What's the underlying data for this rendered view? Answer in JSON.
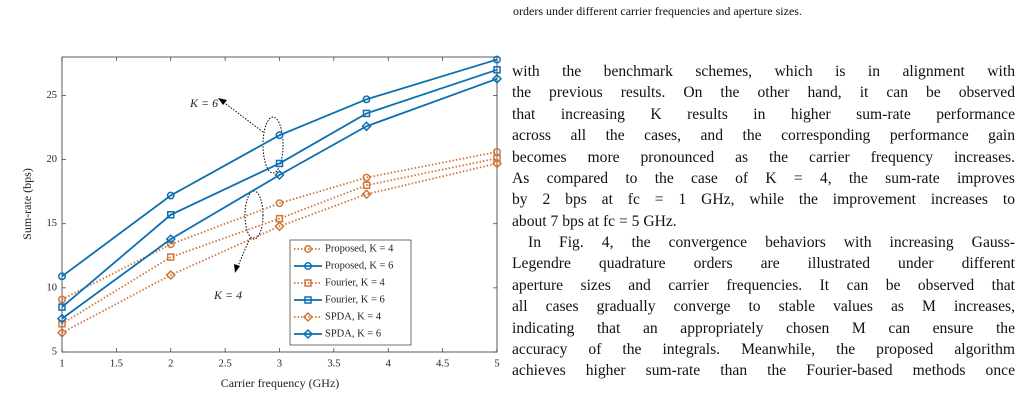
{
  "chart_data": {
    "type": "line",
    "xlabel": "Carrier frequency (GHz)",
    "ylabel": "Sum-rate (bps)",
    "x": [
      1,
      2,
      3,
      3.8,
      5
    ],
    "xlim": [
      1,
      5
    ],
    "xticks": [
      1,
      1.5,
      2,
      2.5,
      3,
      3.5,
      4,
      4.5,
      5
    ],
    "ylim": [
      5,
      28
    ],
    "yticks": [
      5,
      10,
      15,
      20,
      25
    ],
    "annotations": [
      "K = 6",
      "K = 4"
    ],
    "series": [
      {
        "name": "Proposed, K = 4",
        "color": "#d0763a",
        "marker": "circle",
        "linestyle": "dotted",
        "values": [
          9.1,
          13.4,
          16.6,
          18.6,
          20.6
        ]
      },
      {
        "name": "Proposed, K = 6",
        "color": "#0b6fb0",
        "marker": "circle",
        "linestyle": "solid",
        "values": [
          10.9,
          17.2,
          21.9,
          24.7,
          27.8
        ]
      },
      {
        "name": "Fourier, K = 4",
        "color": "#d0763a",
        "marker": "square",
        "linestyle": "dotted",
        "values": [
          7.2,
          12.4,
          15.4,
          18.0,
          20.1
        ]
      },
      {
        "name": "Fourier, K = 6",
        "color": "#0b6fb0",
        "marker": "square",
        "linestyle": "solid",
        "values": [
          8.5,
          15.7,
          19.7,
          23.6,
          27.0
        ]
      },
      {
        "name": "SPDA, K = 4",
        "color": "#d0763a",
        "marker": "diamond",
        "linestyle": "dotted",
        "values": [
          6.5,
          11.0,
          14.8,
          17.3,
          19.7
        ]
      },
      {
        "name": "SPDA, K = 6",
        "color": "#0b6fb0",
        "marker": "diamond",
        "linestyle": "solid",
        "values": [
          7.6,
          13.8,
          18.8,
          22.6,
          26.3
        ]
      }
    ]
  },
  "text": {
    "caption_fragment": "orders under different carrier frequencies and aperture sizes.",
    "paragraphs": [
      [
        "with the benchmark schemes, which is in alignment with",
        "the previous results. On the other hand, it can be observed",
        "that increasing K results in higher sum-rate performance",
        "across all the cases, and the corresponding performance gain",
        "becomes more pronounced as the carrier frequency increases.",
        "As compared to the case of K = 4, the sum-rate improves",
        "by 2 bps at fc = 1 GHz, while the improvement increases to",
        "about 7 bps at fc = 5 GHz."
      ],
      [
        "In Fig. 4, the convergence behaviors with increasing Gauss-",
        "Legendre quadrature orders are illustrated under different",
        "aperture sizes and carrier frequencies. It can be observed that",
        "all cases gradually converge to stable values as M increases,",
        "indicating that an appropriately chosen M can ensure the",
        "accuracy of the integrals. Meanwhile, the proposed algorithm",
        "achieves higher sum-rate than the Fourier-based methods once"
      ]
    ]
  }
}
